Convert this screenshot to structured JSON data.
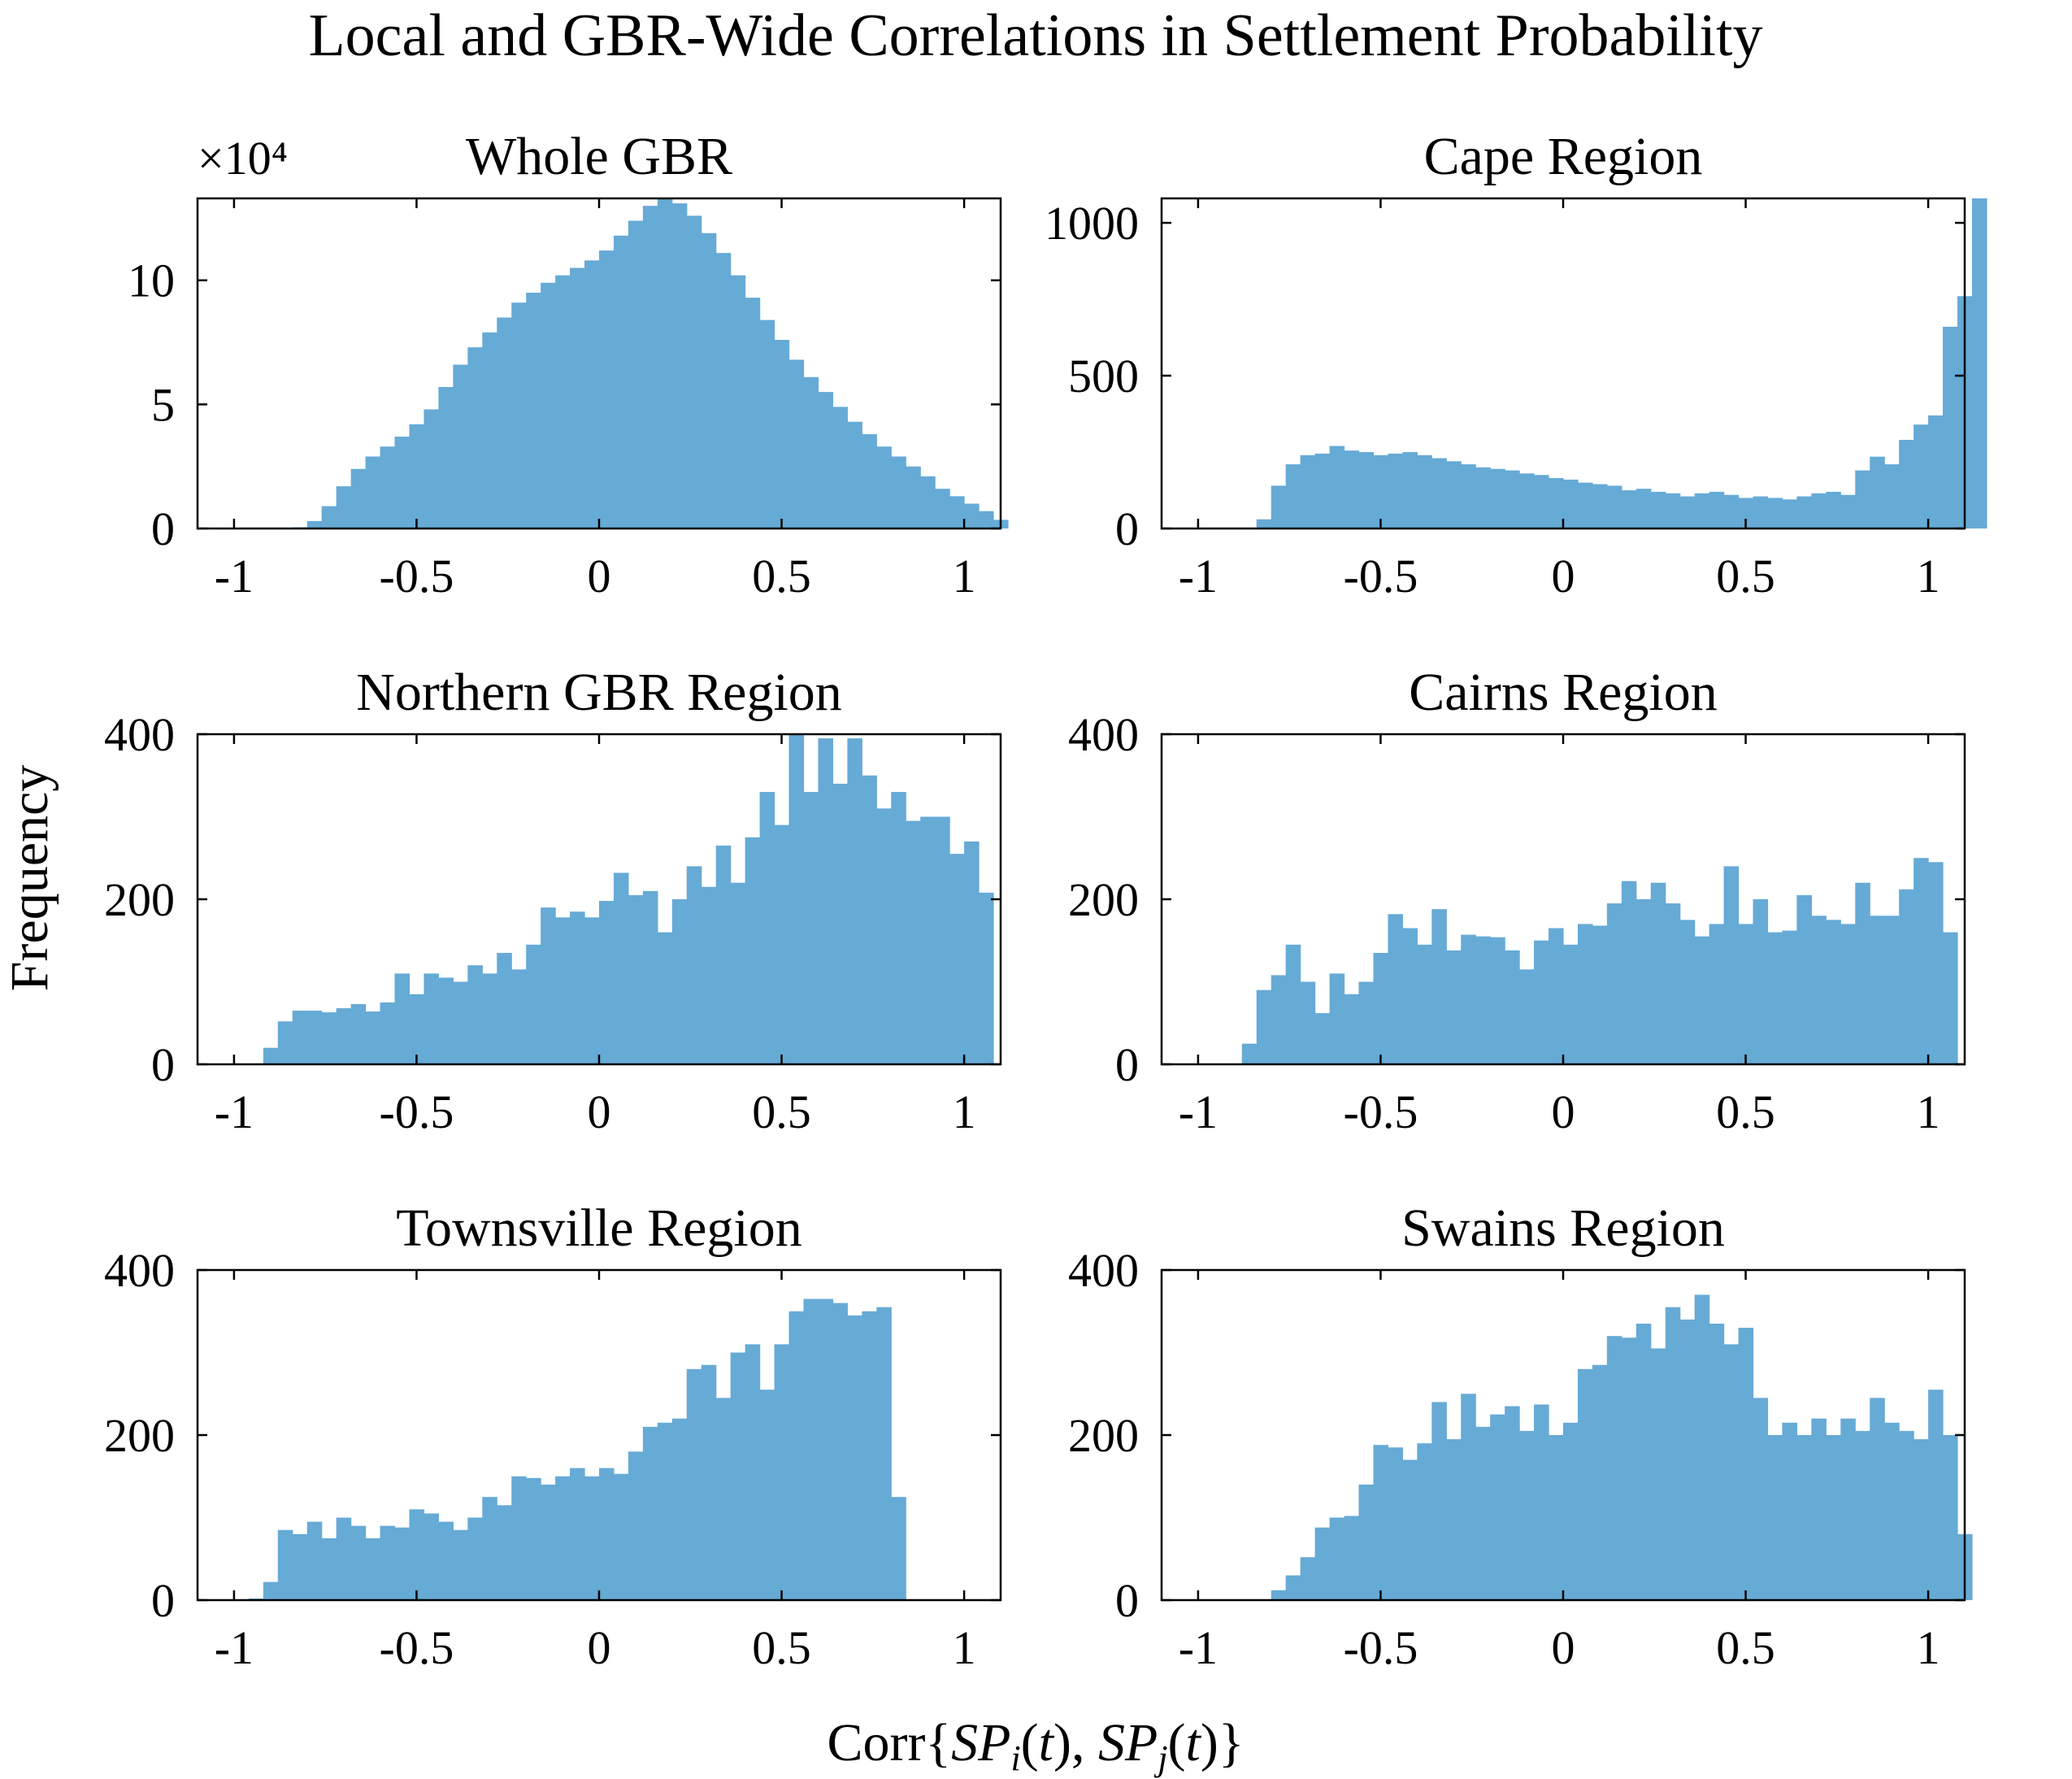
{
  "figure": {
    "title": "Local and GBR-Wide Correlations in Settlement Probability",
    "ylabel": "Frequency",
    "xlabel": "Corr{SP_i(t), SP_j(t)}",
    "bar_color": "#66aad6"
  },
  "chart_data": [
    {
      "type": "bar",
      "title": "Whole GBR",
      "y_multiplier_label": "×10⁴",
      "xlim": [
        -1.1,
        1.1
      ],
      "ylim": [
        0,
        133000
      ],
      "xticks": [
        "-1",
        "-0.5",
        "0",
        "0.5",
        "1"
      ],
      "yticks": [
        0,
        50000,
        100000
      ],
      "ytick_labels": [
        "0",
        "5",
        "10"
      ],
      "bin_start": -0.84,
      "bin_width": 0.04,
      "values": [
        500,
        3000,
        9000,
        17000,
        24000,
        29000,
        33000,
        37000,
        42000,
        48000,
        57000,
        66000,
        73000,
        79000,
        85000,
        91000,
        95000,
        99000,
        102000,
        105000,
        108000,
        112000,
        118000,
        124000,
        130000,
        133000,
        131000,
        126000,
        119000,
        111000,
        102000,
        93000,
        84000,
        76000,
        68000,
        61000,
        55000,
        49000,
        43000,
        38000,
        33000,
        29000,
        25000,
        21000,
        16000,
        13000,
        10000,
        7000,
        3500
      ]
    },
    {
      "type": "bar",
      "title": "Cape Region",
      "xlim": [
        -1.1,
        1.1
      ],
      "ylim": [
        0,
        1080
      ],
      "xticks": [
        "-1",
        "-0.5",
        "0",
        "0.5",
        "1"
      ],
      "yticks": [
        0,
        500,
        1000
      ],
      "ytick_labels": [
        "0",
        "500",
        "1000"
      ],
      "bin_start": -0.84,
      "bin_width": 0.04,
      "values": [
        30,
        140,
        210,
        240,
        245,
        270,
        255,
        250,
        240,
        245,
        250,
        240,
        230,
        220,
        210,
        200,
        195,
        190,
        180,
        175,
        165,
        160,
        150,
        145,
        140,
        125,
        130,
        120,
        115,
        105,
        115,
        120,
        110,
        100,
        105,
        100,
        95,
        105,
        115,
        120,
        110,
        190,
        235,
        210,
        290,
        340,
        370,
        660,
        760,
        1080
      ]
    },
    {
      "type": "bar",
      "title": "Northern GBR Region",
      "xlim": [
        -1.1,
        1.1
      ],
      "ylim": [
        0,
        400
      ],
      "xticks": [
        "-1",
        "-0.5",
        "0",
        "0.5",
        "1"
      ],
      "yticks": [
        0,
        200,
        400
      ],
      "ytick_labels": [
        "0",
        "200",
        "400"
      ],
      "bin_start": -0.92,
      "bin_width": 0.04,
      "values": [
        20,
        52,
        65,
        65,
        63,
        68,
        73,
        64,
        75,
        110,
        85,
        110,
        105,
        100,
        120,
        110,
        135,
        115,
        145,
        190,
        178,
        185,
        178,
        198,
        232,
        205,
        210,
        160,
        200,
        240,
        215,
        265,
        220,
        275,
        330,
        290,
        405,
        330,
        395,
        340,
        395,
        350,
        310,
        330,
        295,
        300,
        300,
        255,
        270,
        208
      ]
    },
    {
      "type": "bar",
      "title": "Cairns Region",
      "xlim": [
        -1.1,
        1.1
      ],
      "ylim": [
        0,
        400
      ],
      "xticks": [
        "-1",
        "-0.5",
        "0",
        "0.5",
        "1"
      ],
      "yticks": [
        0,
        200,
        400
      ],
      "ytick_labels": [
        "0",
        "200",
        "400"
      ],
      "bin_start": -0.88,
      "bin_width": 0.04,
      "values": [
        25,
        90,
        108,
        145,
        100,
        62,
        110,
        85,
        100,
        135,
        182,
        165,
        145,
        188,
        138,
        157,
        155,
        154,
        138,
        115,
        150,
        165,
        145,
        170,
        168,
        195,
        222,
        200,
        220,
        195,
        175,
        155,
        170,
        240,
        170,
        200,
        160,
        162,
        205,
        180,
        175,
        170,
        220,
        180,
        180,
        212,
        250,
        245,
        160
      ]
    },
    {
      "type": "bar",
      "title": "Townsville Region",
      "xlim": [
        -1.1,
        1.1
      ],
      "ylim": [
        0,
        400
      ],
      "xticks": [
        "-1",
        "-0.5",
        "0",
        "0.5",
        "1"
      ],
      "yticks": [
        0,
        200,
        400
      ],
      "ytick_labels": [
        "0",
        "200",
        "400"
      ],
      "bin_start": -0.96,
      "bin_width": 0.04,
      "values": [
        2,
        22,
        85,
        80,
        95,
        75,
        100,
        90,
        75,
        90,
        88,
        110,
        105,
        95,
        85,
        100,
        125,
        115,
        150,
        148,
        140,
        150,
        160,
        150,
        160,
        153,
        180,
        210,
        215,
        220,
        280,
        285,
        245,
        300,
        310,
        255,
        310,
        350,
        365,
        365,
        360,
        345,
        350,
        355,
        125
      ]
    },
    {
      "type": "bar",
      "title": "Swains Region",
      "xlim": [
        -1.1,
        1.1
      ],
      "ylim": [
        0,
        400
      ],
      "xticks": [
        "-1",
        "-0.5",
        "0",
        "0.5",
        "1"
      ],
      "yticks": [
        0,
        200,
        400
      ],
      "ytick_labels": [
        "0",
        "200",
        "400"
      ],
      "bin_start": -0.8,
      "bin_width": 0.04,
      "values": [
        12,
        30,
        52,
        88,
        100,
        102,
        140,
        188,
        185,
        170,
        190,
        240,
        195,
        250,
        210,
        225,
        235,
        205,
        237,
        200,
        215,
        280,
        285,
        320,
        318,
        335,
        305,
        355,
        340,
        370,
        335,
        310,
        330,
        245,
        200,
        215,
        200,
        220,
        200,
        220,
        205,
        245,
        215,
        205,
        195,
        255,
        200,
        80
      ]
    }
  ]
}
